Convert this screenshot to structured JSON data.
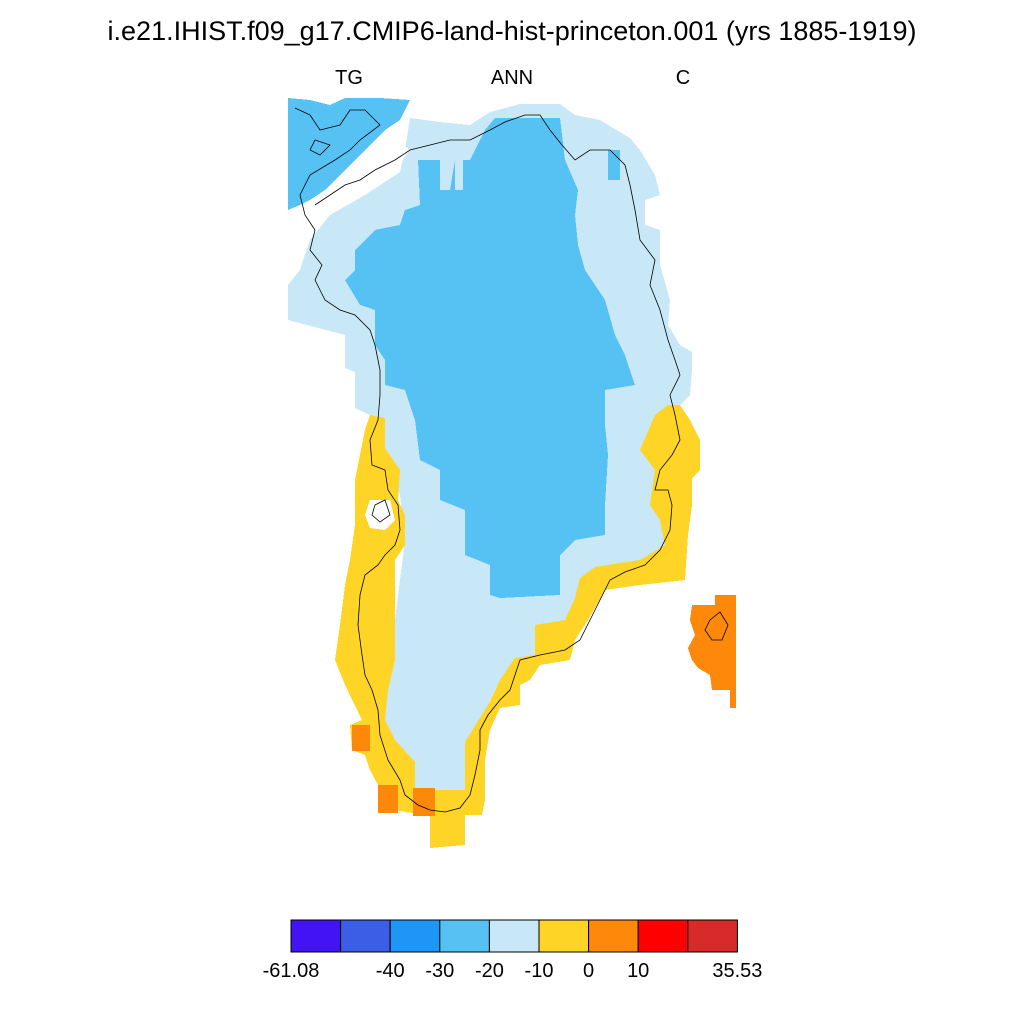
{
  "title": "i.e21.IHIST.f09_g17.CMIP6-land-hist-princeton.001 (yrs 1885-1919)",
  "subtitles": {
    "left": "TG",
    "center": "ANN",
    "right": "C"
  },
  "legend": {
    "colors": [
      "#4413f4",
      "#3c5ee6",
      "#1e96f7",
      "#56c2f4",
      "#c8e8f7",
      "#fed426",
      "#fe880a",
      "#fe0000",
      "#d72a2a"
    ],
    "labels": [
      "-61.08",
      "-40",
      "-30",
      "-20",
      "-10",
      "0",
      "10",
      "35.53"
    ],
    "bounds": [
      -61.08,
      -50,
      -40,
      -30,
      -20,
      -10,
      0,
      10,
      20,
      35.53
    ]
  },
  "map_regions": [
    {
      "name": "ice-sheet-interior",
      "category": "-30 to -20",
      "color": "#56c2f4"
    },
    {
      "name": "northwest-coast",
      "category": "-30 to -20",
      "color": "#56c2f4"
    },
    {
      "name": "ice-sheet-margin",
      "category": "-20 to -10",
      "color": "#c8e8f7"
    },
    {
      "name": "south-coast",
      "category": "-10 to 0",
      "color": "#fed426"
    },
    {
      "name": "southern-tips",
      "category": "0 to 10",
      "color": "#fe880a"
    },
    {
      "name": "iceland",
      "category": "0 to 10",
      "color": "#fe880a"
    }
  ]
}
